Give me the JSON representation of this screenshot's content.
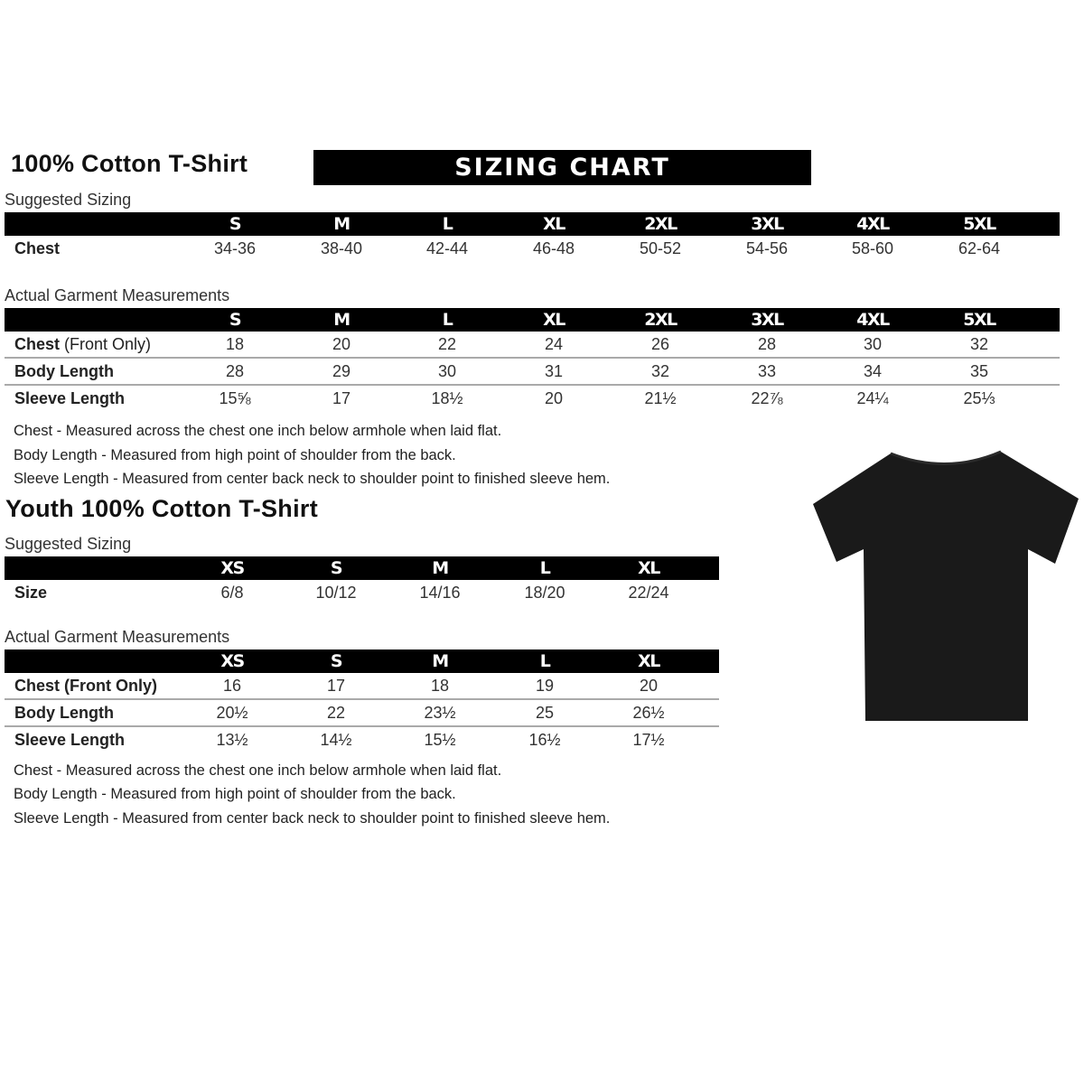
{
  "adult": {
    "title": "100% Cotton T-Shirt",
    "banner": "SIZING CHART",
    "suggested_label": "Suggested Sizing",
    "sizes": [
      "S",
      "M",
      "L",
      "XL",
      "2XL",
      "3XL",
      "4XL",
      "5XL"
    ],
    "suggested_rows": [
      {
        "label": "Chest",
        "values": [
          "34-36",
          "38-40",
          "42-44",
          "46-48",
          "50-52",
          "54-56",
          "58-60",
          "62-64"
        ]
      }
    ],
    "actual_label": "Actual Garment Measurements",
    "actual_rows": [
      {
        "label": "Chest",
        "label_suffix": " (Front Only)",
        "values": [
          "18",
          "20",
          "22",
          "24",
          "26",
          "28",
          "30",
          "32"
        ]
      },
      {
        "label": "Body Length",
        "values": [
          "28",
          "29",
          "30",
          "31",
          "32",
          "33",
          "34",
          "35"
        ]
      },
      {
        "label": "Sleeve Length",
        "values": [
          "15⅝",
          "17",
          "18½",
          "20",
          "21½",
          "22⅞",
          "24¼",
          "25⅓"
        ]
      }
    ],
    "notes": [
      "Chest - Measured across the chest one inch below armhole when laid flat.",
      "Body Length - Measured from high point of shoulder from the back.",
      "Sleeve Length - Measured from center back neck to shoulder point to finished sleeve hem."
    ]
  },
  "youth": {
    "title": "Youth 100% Cotton T-Shirt",
    "suggested_label": "Suggested Sizing",
    "sizes": [
      "XS",
      "S",
      "M",
      "L",
      "XL"
    ],
    "suggested_rows": [
      {
        "label": "Size",
        "values": [
          "6/8",
          "10/12",
          "14/16",
          "18/20",
          "22/24"
        ]
      }
    ],
    "actual_label": "Actual Garment Measurements",
    "actual_rows": [
      {
        "label": "Chest (Front Only)",
        "values": [
          "16",
          "17",
          "18",
          "19",
          "20"
        ]
      },
      {
        "label": "Body Length",
        "values": [
          "20½",
          "22",
          "23½",
          "25",
          "26½"
        ]
      },
      {
        "label": "Sleeve Length",
        "values": [
          "13½",
          "14½",
          "15½",
          "16½",
          "17½"
        ]
      }
    ],
    "notes": [
      "Chest - Measured across the chest one inch below armhole when laid flat.",
      "Body Length - Measured from high point of shoulder from the back.",
      "Sleeve Length - Measured from center back neck to shoulder point to finished sleeve hem."
    ]
  },
  "image": {
    "icon": "black-tshirt-icon",
    "color": "#1a1a1a"
  }
}
